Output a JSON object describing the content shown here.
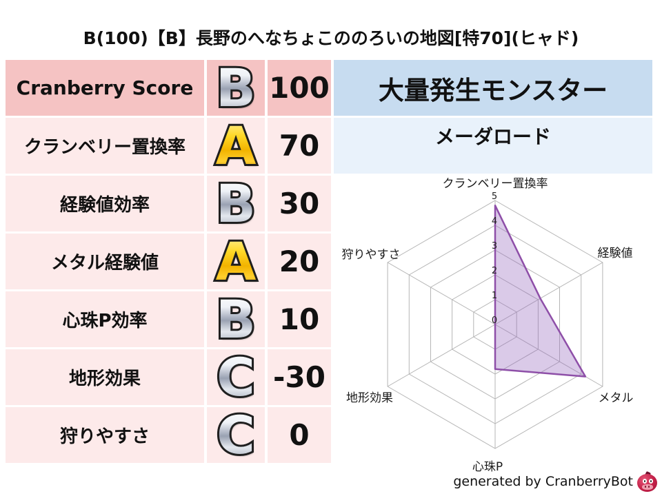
{
  "title": "B(100)【B】長野のへなちょこののろいの地図[特70](ヒャド)",
  "score_table": {
    "rows": [
      {
        "label": "Cranberry Score",
        "grade": "B",
        "grade_style": "silver",
        "value": "100"
      },
      {
        "label": "クランベリー置換率",
        "grade": "A",
        "grade_style": "gold",
        "value": "70"
      },
      {
        "label": "経験値効率",
        "grade": "B",
        "grade_style": "silver",
        "value": "30"
      },
      {
        "label": "メタル経験値",
        "grade": "A",
        "grade_style": "gold",
        "value": "20"
      },
      {
        "label": "心珠P効率",
        "grade": "B",
        "grade_style": "silver",
        "value": "10"
      },
      {
        "label": "地形効果",
        "grade": "C",
        "grade_style": "silver",
        "value": "-30"
      },
      {
        "label": "狩りやすさ",
        "grade": "C",
        "grade_style": "silver",
        "value": "0"
      }
    ]
  },
  "monster_panel": {
    "header": "大量発生モンスター",
    "monster_name": "メーダロード"
  },
  "chart_data": {
    "type": "radar",
    "categories": [
      "クランベリー置換率",
      "経験値",
      "メタル",
      "心珠P",
      "地形効果",
      "狩りやすさ"
    ],
    "values": [
      4.8,
      2.1,
      4.2,
      1.8,
      0,
      0
    ],
    "rmin": 0,
    "rmax": 5,
    "tick_labels": [
      "0",
      "1",
      "2",
      "3",
      "4",
      "5"
    ],
    "grid": true,
    "legend": false,
    "fill_color": "#9467bd",
    "fill_opacity": 0.35,
    "line_color": "#8e4fa8",
    "grid_color": "#b5b5b5",
    "tick_color": "#222222"
  },
  "footer": {
    "credit": "generated by CranberryBot",
    "mascot_icon": "cranberry-mascot"
  },
  "colors": {
    "table_header_row_bg": "#f5c3c3",
    "table_row_bg": "#fdeaea",
    "monster_header_bg": "#c7dcf0",
    "monster_row_bg": "#e9f2fb"
  }
}
